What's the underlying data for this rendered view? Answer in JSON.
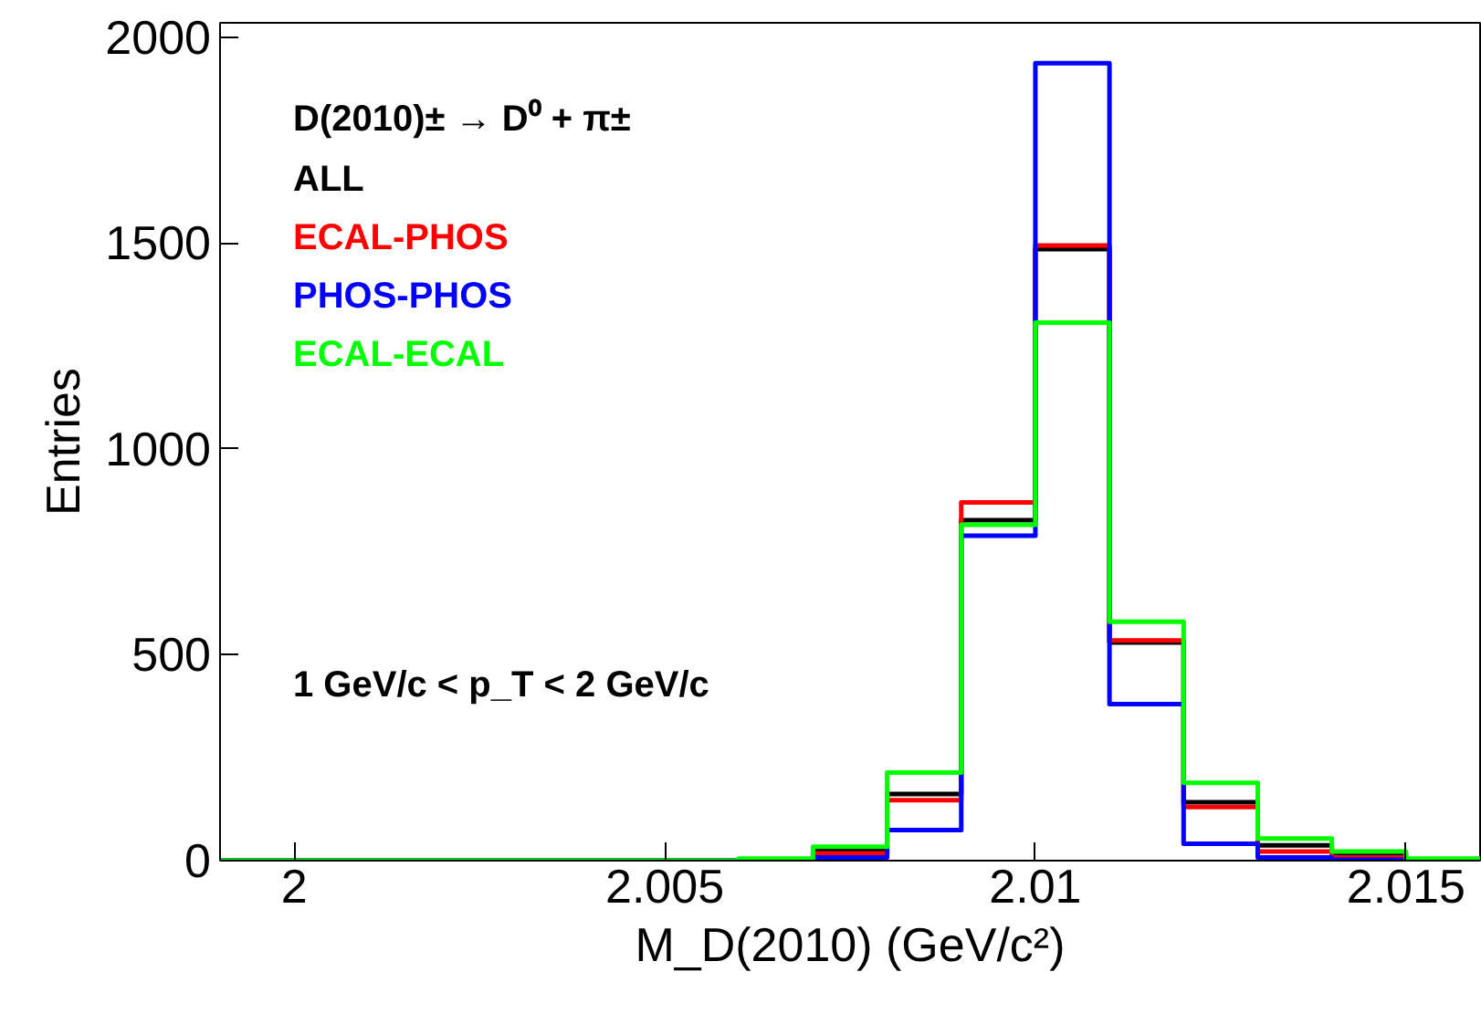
{
  "chart_data": {
    "type": "histogram",
    "xlabel": "M_D(2010) (GeV/c²)",
    "ylabel": "Entries",
    "bins": [
      1.999,
      2.0,
      2.001,
      2.002,
      2.003,
      2.004,
      2.005,
      2.006,
      2.007,
      2.008,
      2.009,
      2.01,
      2.011,
      2.012,
      2.013,
      2.014,
      2.015,
      2.016
    ],
    "series": [
      {
        "name": "ALL",
        "color": "#000000",
        "values": [
          0,
          0,
          0,
          0,
          0,
          0,
          0,
          3,
          24,
          162,
          827,
          1485,
          530,
          142,
          37,
          15,
          3
        ]
      },
      {
        "name": "ECAL-PHOS",
        "color": "#ff0000",
        "values": [
          0,
          0,
          0,
          0,
          0,
          0,
          0,
          2,
          18,
          147,
          870,
          1494,
          535,
          130,
          22,
          8,
          2
        ]
      },
      {
        "name": "PHOS-PHOS",
        "color": "#0000ff",
        "values": [
          0,
          0,
          0,
          0,
          0,
          0,
          0,
          1,
          8,
          74,
          789,
          1937,
          380,
          41,
          8,
          2,
          1
        ]
      },
      {
        "name": "ECAL-ECAL",
        "color": "#00ff00",
        "values": [
          0,
          0,
          0,
          0,
          0,
          0,
          0,
          5,
          34,
          214,
          816,
          1307,
          580,
          189,
          54,
          22,
          5
        ]
      }
    ],
    "annotations": [
      "D(2010)± → D⁰ + π±",
      "1 GeV/c < p_T < 2 GeV/c"
    ],
    "legend": "top left",
    "grid": false,
    "xlim": [
      1.999,
      2.016
    ],
    "xticks": [
      2,
      2.005,
      2.01,
      2.015
    ],
    "ylim": [
      0,
      2035
    ],
    "yticks": [
      0,
      500,
      1000,
      1500,
      2000
    ]
  }
}
